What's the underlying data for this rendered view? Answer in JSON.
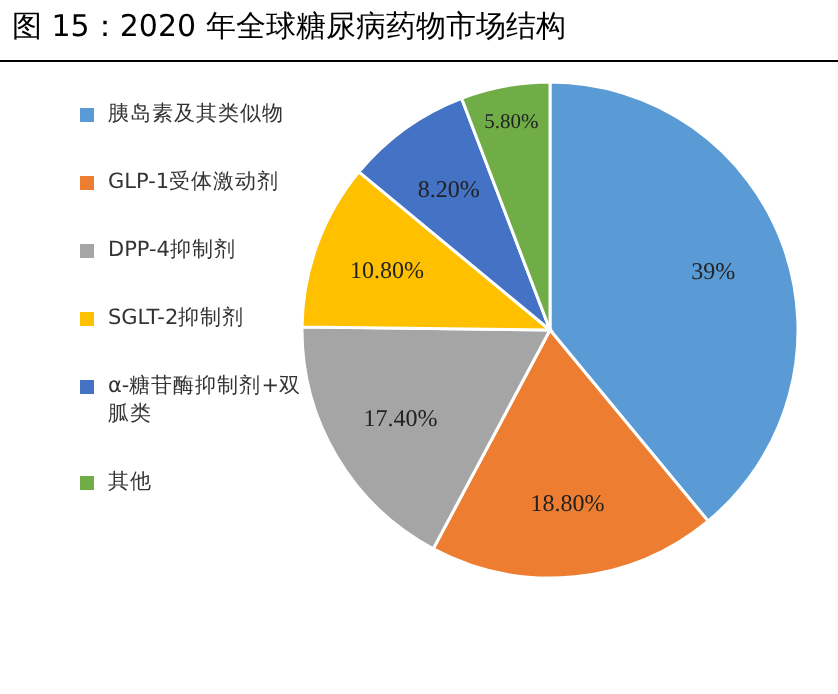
{
  "chart_data": {
    "type": "pie",
    "title": "图 15：2020 年全球糖尿病药物市场结构",
    "categories": [
      "胰岛素及其类似物",
      "GLP-1受体激动剂",
      "DPP-4抑制剂",
      "SGLT-2抑制剂",
      "α-糖苷酶抑制剂+双胍类",
      "其他"
    ],
    "values": [
      39,
      18.8,
      17.4,
      10.8,
      8.2,
      5.8
    ],
    "colors": [
      "#5b9bd5",
      "#ed7d31",
      "#a5a5a5",
      "#ffc000",
      "#4472c4",
      "#70ad47"
    ],
    "value_labels": [
      "39%",
      "18.80%",
      "17.40%",
      "10.80%",
      "8.20%",
      "5.80%"
    ],
    "legend": "left"
  }
}
